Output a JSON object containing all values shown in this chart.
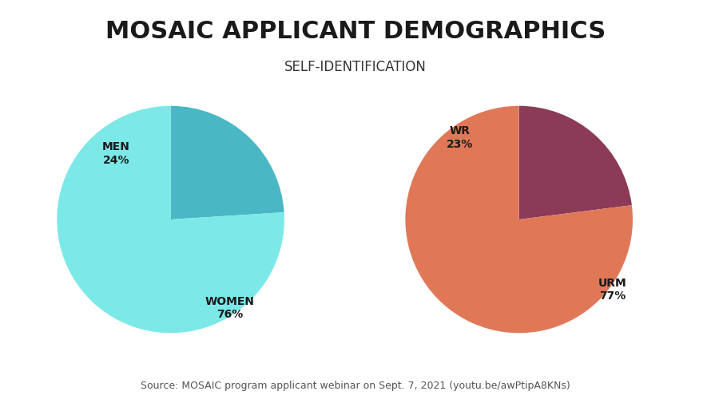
{
  "title": "MOSAIC APPLICANT DEMOGRAPHICS",
  "subtitle": "SELF-IDENTIFICATION",
  "pie1_values": [
    24,
    76
  ],
  "pie1_colors": [
    "#4ab8c4",
    "#7de8e8"
  ],
  "pie1_startangle": 90,
  "pie2_values": [
    23,
    77
  ],
  "pie2_colors": [
    "#8b3a58",
    "#e07858"
  ],
  "pie2_startangle": 90,
  "source_text": "Source: MOSAIC program applicant webinar on Sept. 7, 2021 (youtu.be/awPtipA8KNs)",
  "bg_color": "#ffffff",
  "title_fontsize": 22,
  "subtitle_fontsize": 12,
  "label_fontsize": 10,
  "source_fontsize": 9
}
